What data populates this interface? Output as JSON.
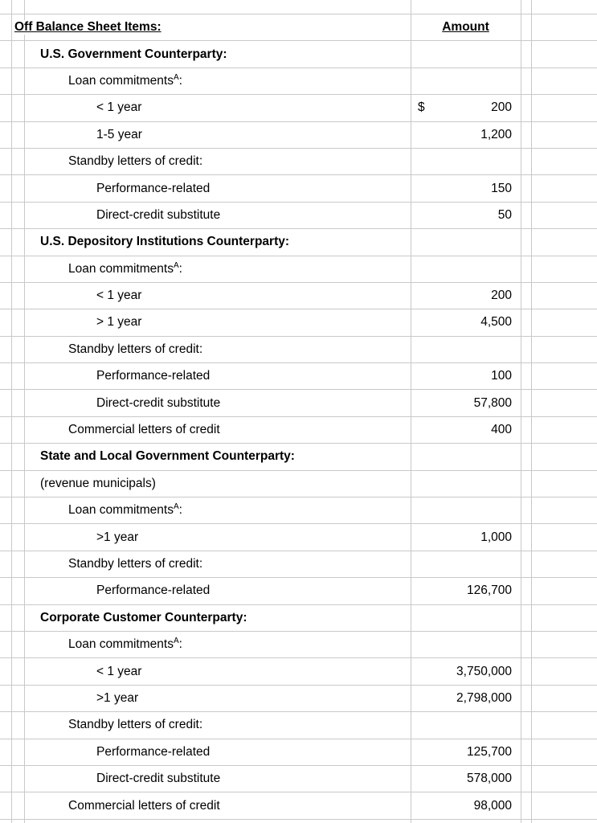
{
  "header": {
    "items_label": "Off Balance Sheet Items:",
    "amount_label": "Amount"
  },
  "rows": [
    {
      "label": "U.S. Government Counterparty:",
      "indent": 1,
      "bold": true
    },
    {
      "label": "Loan commitments",
      "sup": "A",
      "suffix": ":",
      "indent": 2
    },
    {
      "label": "< 1 year",
      "indent": 3,
      "currency": "$",
      "amount": "200"
    },
    {
      "label": "1-5 year",
      "indent": 3,
      "amount": "1,200"
    },
    {
      "label": "Standby letters of credit:",
      "indent": 2
    },
    {
      "label": "Performance-related",
      "indent": 3,
      "amount": "150"
    },
    {
      "label": "Direct-credit substitute",
      "indent": 3,
      "amount": "50"
    },
    {
      "label": "U.S. Depository Institutions Counterparty:",
      "indent": 1,
      "bold": true
    },
    {
      "label": "Loan commitments",
      "sup": "A",
      "suffix": ":",
      "indent": 2
    },
    {
      "label": "< 1 year",
      "indent": 3,
      "amount": "200"
    },
    {
      "label": "> 1 year",
      "indent": 3,
      "amount": "4,500"
    },
    {
      "label": "Standby letters of credit:",
      "indent": 2
    },
    {
      "label": "Performance-related",
      "indent": 3,
      "amount": "100"
    },
    {
      "label": "Direct-credit substitute",
      "indent": 3,
      "amount": "57,800"
    },
    {
      "label": "Commercial letters of credit",
      "indent": 2,
      "amount": "400"
    },
    {
      "label": "State and Local Government Counterparty:",
      "indent": 1,
      "bold": true
    },
    {
      "label": "(revenue municipals)",
      "indent": 1
    },
    {
      "label": "Loan commitments",
      "sup": "A",
      "suffix": ":",
      "indent": 2
    },
    {
      "label": ">1 year",
      "indent": 3,
      "amount": "1,000"
    },
    {
      "label": "Standby letters of credit:",
      "indent": 2
    },
    {
      "label": "Performance-related",
      "indent": 3,
      "amount": "126,700"
    },
    {
      "label": "Corporate Customer Counterparty:",
      "indent": 1,
      "bold": true
    },
    {
      "label": "Loan commitments",
      "sup": "A",
      "suffix": ":",
      "indent": 2
    },
    {
      "label": "< 1 year",
      "indent": 3,
      "amount": "3,750,000"
    },
    {
      "label": ">1 year",
      "indent": 3,
      "amount": "2,798,000"
    },
    {
      "label": "Standby letters of credit:",
      "indent": 2
    },
    {
      "label": "Performance-related",
      "indent": 3,
      "amount": "125,700"
    },
    {
      "label": "Direct-credit substitute",
      "indent": 3,
      "amount": "578,000"
    },
    {
      "label": "Commercial letters of credit",
      "indent": 2,
      "amount": "98,000"
    }
  ],
  "colors": {
    "gridline": "#c9c9c9",
    "text": "#000000",
    "background": "#ffffff"
  }
}
